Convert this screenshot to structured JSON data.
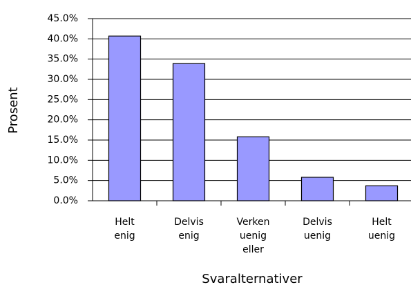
{
  "chart_data": {
    "type": "bar",
    "categories": [
      [
        "Helt",
        "enig"
      ],
      [
        "Delvis",
        "enig"
      ],
      [
        "Verken",
        "uenig",
        "eller"
      ],
      [
        "Delvis",
        "uenig"
      ],
      [
        "Helt",
        "uenig"
      ]
    ],
    "values": [
      40.7,
      33.9,
      15.8,
      5.8,
      3.7
    ],
    "color": "#9999ff",
    "ylabel": "Prosent",
    "xlabel": "Svaralternativer",
    "ylim": [
      0,
      45
    ],
    "yticks": [
      {
        "value": 0,
        "label": "0.0%"
      },
      {
        "value": 5,
        "label": "5.0%"
      },
      {
        "value": 10,
        "label": "10.0%"
      },
      {
        "value": 15,
        "label": "15.0%"
      },
      {
        "value": 20,
        "label": "20.0%"
      },
      {
        "value": 25,
        "label": "25.0%"
      },
      {
        "value": 30,
        "label": "30.0%"
      },
      {
        "value": 35,
        "label": "35.0%"
      },
      {
        "value": 40,
        "label": "40.0%"
      },
      {
        "value": 45,
        "label": "45.0%"
      }
    ],
    "grid": true
  }
}
